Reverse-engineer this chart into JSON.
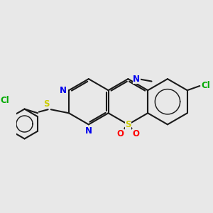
{
  "bg_color": "#e8e8e8",
  "bond_color": "#1a1a1a",
  "N_color": "#0000ee",
  "S_color": "#cccc00",
  "Cl_color": "#00aa00",
  "O_color": "#ff0000",
  "lw": 1.5,
  "fs": 8.5,
  "xlim": [
    -2.5,
    5.5
  ],
  "ylim": [
    -2.2,
    3.8
  ]
}
